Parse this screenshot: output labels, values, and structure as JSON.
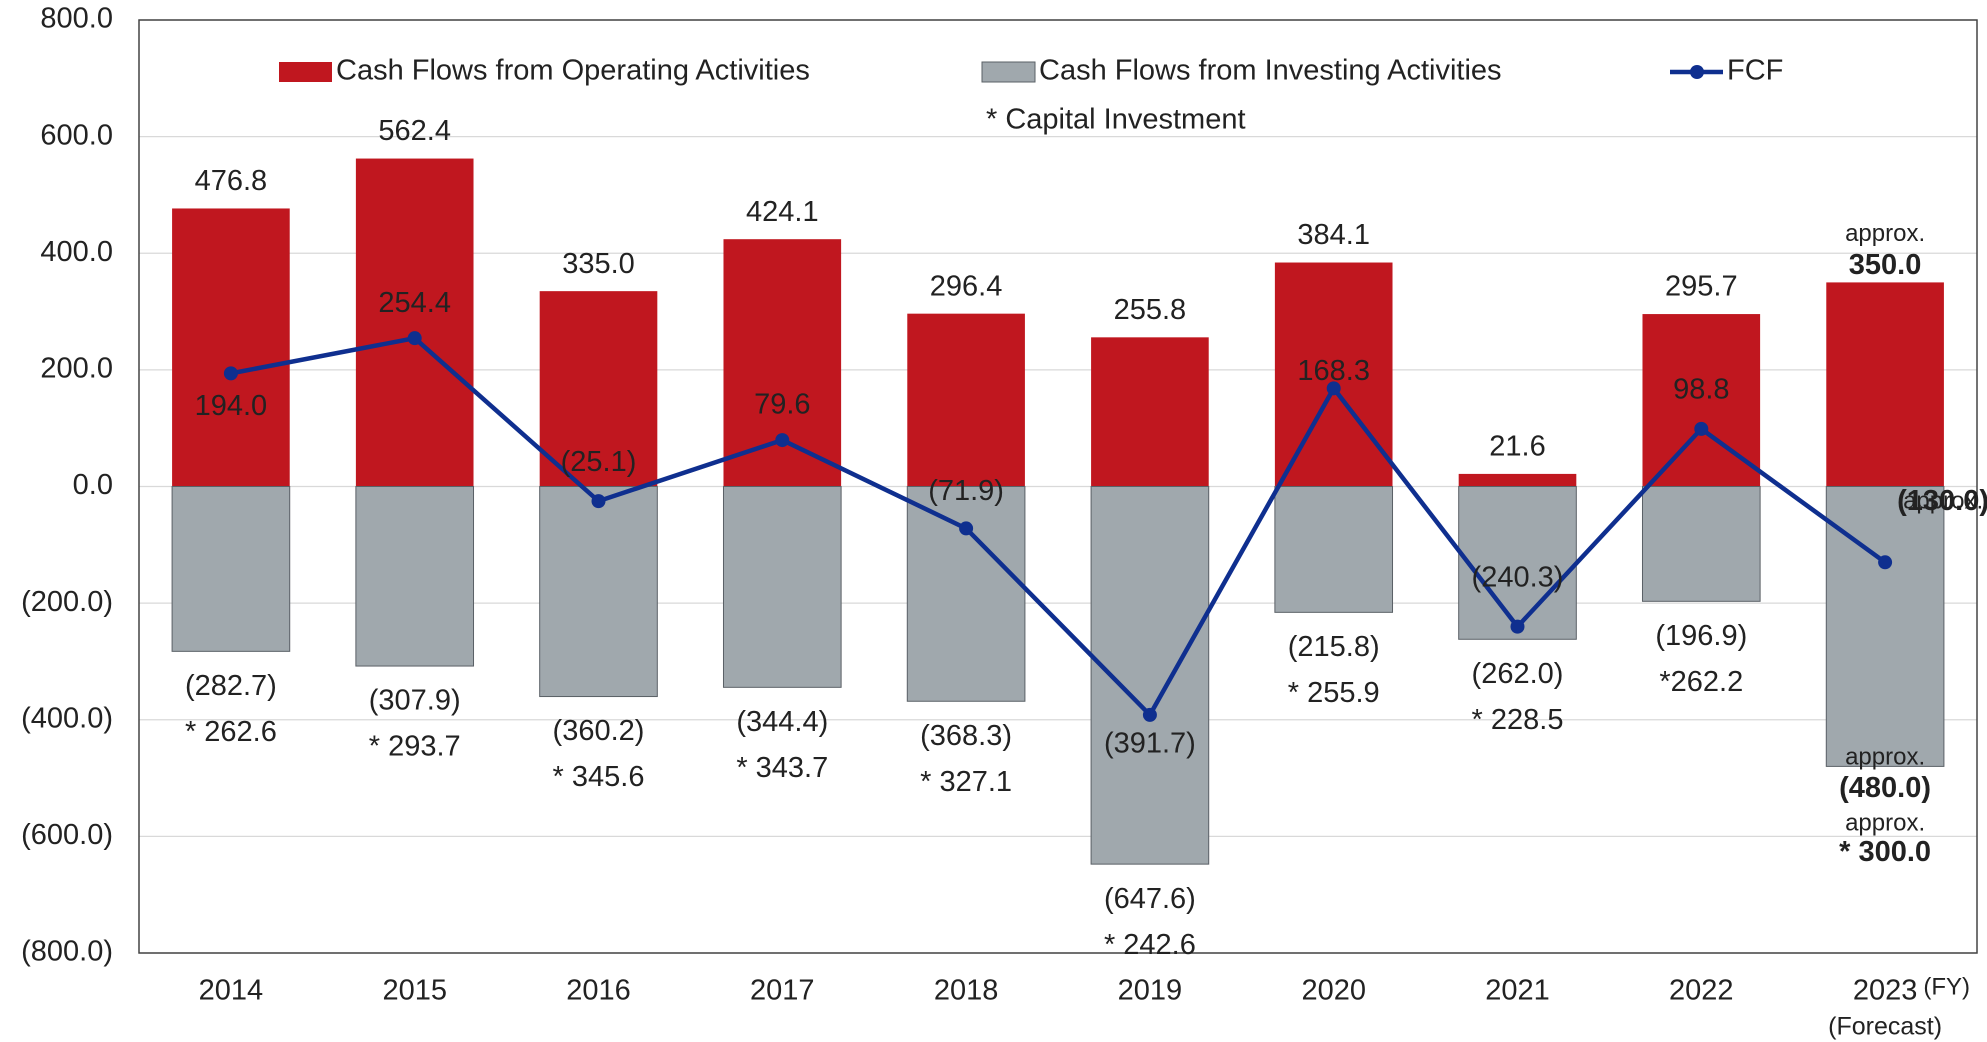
{
  "chart_data": {
    "type": "bar",
    "categories": [
      "2014",
      "2015",
      "2016",
      "2017",
      "2018",
      "2019",
      "2020",
      "2021",
      "2022",
      "2023"
    ],
    "x_unit": "(FY)",
    "forecast_label": "(Forecast)",
    "approx_label": "approx.",
    "ylim": [
      -800,
      800
    ],
    "yticks": [
      {
        "value": -800,
        "label": "(800.0)"
      },
      {
        "value": -600,
        "label": "(600.0)"
      },
      {
        "value": -400,
        "label": "(400.0)"
      },
      {
        "value": -200,
        "label": "(200.0)"
      },
      {
        "value": 0,
        "label": "0.0"
      },
      {
        "value": 200,
        "label": "200.0"
      },
      {
        "value": 400,
        "label": "400.0"
      },
      {
        "value": 600,
        "label": "600.0"
      },
      {
        "value": 800,
        "label": "800.0"
      }
    ],
    "grid": true,
    "series": [
      {
        "name": "Cash Flows from Operating Activities",
        "type": "bar",
        "color": "#c0171f",
        "values": [
          476.8,
          562.4,
          335.0,
          424.1,
          296.4,
          255.8,
          384.1,
          21.6,
          295.7,
          350.0
        ],
        "value_labels": [
          "476.8",
          "562.4",
          "335.0",
          "424.1",
          "296.4",
          "255.8",
          "384.1",
          "21.6",
          "295.7",
          "350.0"
        ]
      },
      {
        "name": "Cash Flows from Investing Activities",
        "type": "bar",
        "color": "#a0a8ad",
        "values": [
          -282.7,
          -307.9,
          -360.2,
          -344.4,
          -368.3,
          -647.6,
          -215.8,
          -262.0,
          -196.9,
          -480.0
        ],
        "value_labels": [
          "(282.7)",
          "(307.9)",
          "(360.2)",
          "(344.4)",
          "(368.3)",
          "(647.6)",
          "(215.8)",
          "(262.0)",
          "(196.9)",
          "(480.0)"
        ]
      },
      {
        "name": "FCF",
        "type": "line",
        "color": "#0f2f8f",
        "values": [
          194.0,
          254.4,
          -25.1,
          79.6,
          -71.9,
          -391.7,
          168.3,
          -240.3,
          98.8,
          -130.0
        ],
        "value_labels": [
          "194.0",
          "254.4",
          "(25.1)",
          "79.6",
          "(71.9)",
          "(391.7)",
          "168.3",
          "(240.3)",
          "98.8",
          "(130.0)"
        ]
      }
    ],
    "capital_investment": {
      "name": "* Capital Investment",
      "values": [
        262.6,
        293.7,
        345.6,
        343.7,
        327.1,
        242.6,
        255.9,
        228.5,
        262.2,
        300.0
      ],
      "value_labels": [
        "* 262.6",
        "* 293.7",
        "* 345.6",
        "* 343.7",
        "* 327.1",
        "* 242.6",
        "* 255.9",
        "* 228.5",
        "*262.2",
        "* 300.0"
      ]
    }
  }
}
